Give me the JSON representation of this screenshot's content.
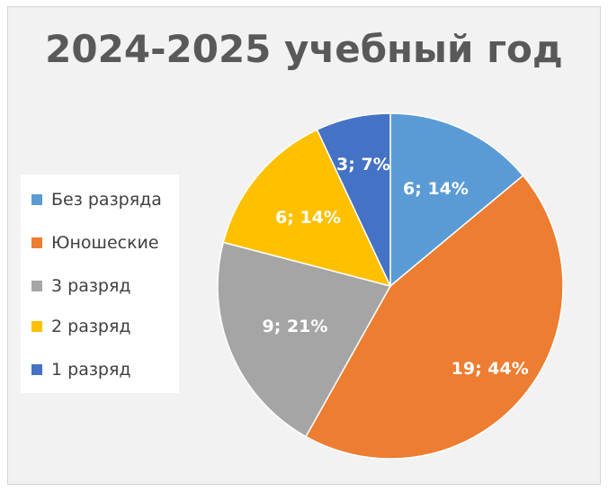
{
  "chart_data": {
    "type": "pie",
    "title": "2024-2025 учебный год",
    "legend_position": "left",
    "categories": [
      "Без разряда",
      "Юношеские",
      "3 разряд",
      "2 разряд",
      "1 разряд"
    ],
    "values": [
      6,
      19,
      9,
      6,
      3
    ],
    "data_labels": [
      "6; 14%",
      "19; 44%",
      "9; 21%",
      "6; 14%",
      "3; 7%"
    ],
    "colors": [
      "#5b9bd5",
      "#ed7d31",
      "#a5a5a5",
      "#ffc000",
      "#4472c4"
    ],
    "start_angle_deg": 0,
    "direction": "clockwise"
  }
}
